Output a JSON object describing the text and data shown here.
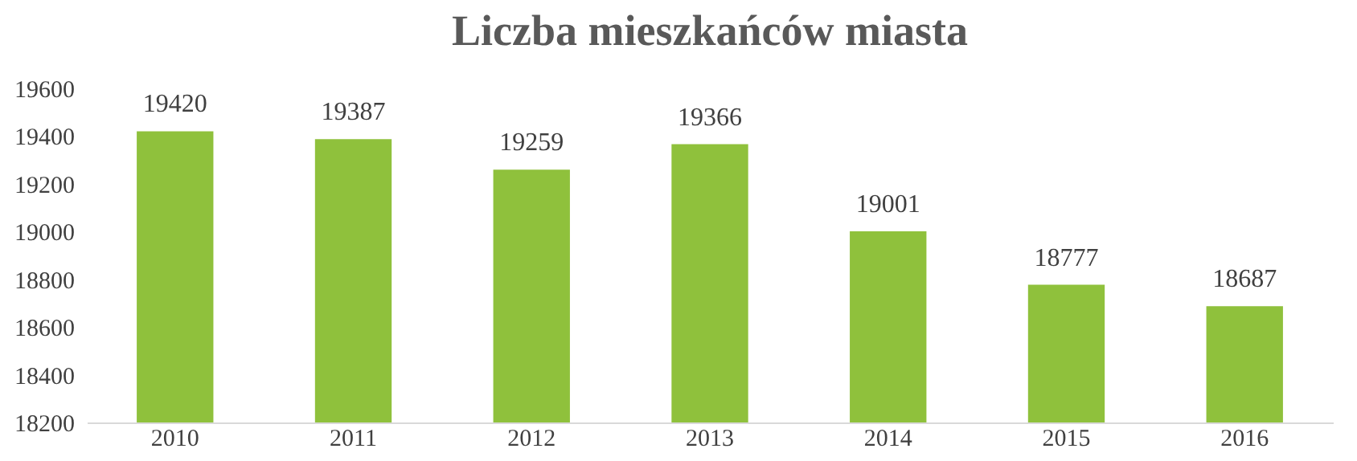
{
  "chart_data": {
    "type": "bar",
    "title": "Liczba mieszkańców miasta",
    "categories": [
      "2010",
      "2011",
      "2012",
      "2013",
      "2014",
      "2015",
      "2016"
    ],
    "values": [
      19420,
      19387,
      19259,
      19366,
      19001,
      18777,
      18687
    ],
    "color": "#8fc13c",
    "ylim": [
      18200,
      19600
    ],
    "yticks": [
      18200,
      18400,
      18600,
      18800,
      19000,
      19200,
      19400,
      19600
    ],
    "data_labels": true
  }
}
